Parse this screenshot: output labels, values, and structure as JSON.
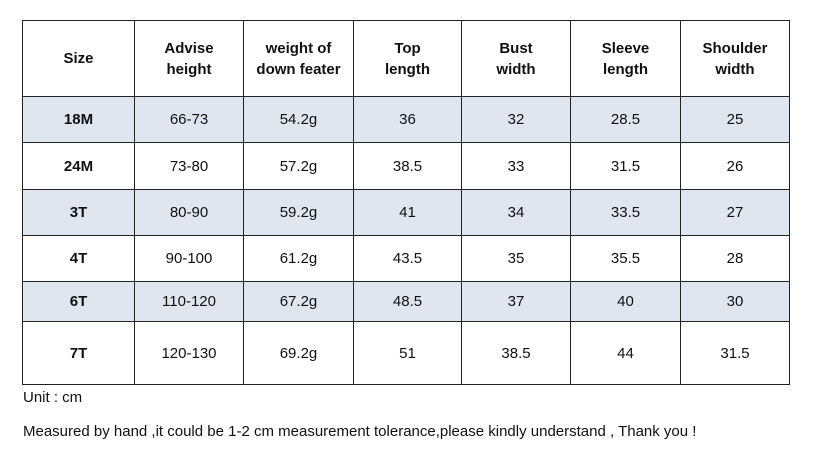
{
  "table": {
    "header": [
      "Size",
      "Advise\nheight",
      "weight of\ndown feater",
      "Top\nlength",
      "Bust\nwidth",
      "Sleeve\nlength",
      "Shoulder\nwidth"
    ],
    "rows": [
      [
        "18M",
        "66-73",
        "54.2g",
        "36",
        "32",
        "28.5",
        "25"
      ],
      [
        "24M",
        "73-80",
        "57.2g",
        "38.5",
        "33",
        "31.5",
        "26"
      ],
      [
        "3T",
        "80-90",
        "59.2g",
        "41",
        "34",
        "33.5",
        "27"
      ],
      [
        "4T",
        "90-100",
        "61.2g",
        "43.5",
        "35",
        "35.5",
        "28"
      ],
      [
        "6T",
        "110-120",
        "67.2g",
        "48.5",
        "37",
        "40",
        "30"
      ],
      [
        "7T",
        "120-130",
        "69.2g",
        "51",
        "38.5",
        "44",
        "31.5"
      ]
    ]
  },
  "notes": [
    "Unit : cm",
    "Measured by hand ,it could be 1-2 cm measurement tolerance,please kindly understand , Thank you !"
  ]
}
